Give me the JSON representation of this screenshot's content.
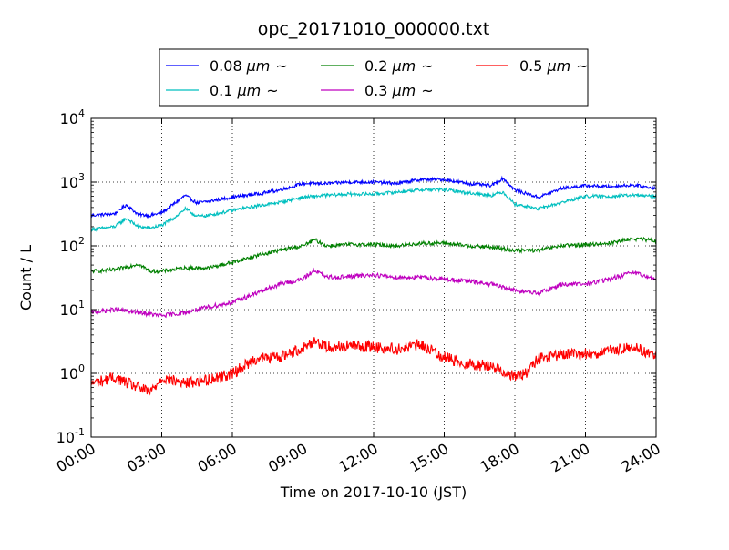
{
  "chart_data": {
    "type": "line",
    "title": "opc_20171010_000000.txt",
    "xlabel": "Time on 2017-10-10 (JST)",
    "ylabel": "Count / L",
    "yscale": "log",
    "ylim": [
      0.1,
      10000
    ],
    "xlim": [
      "00:00",
      "24:00"
    ],
    "x_ticks": [
      "00:00",
      "03:00",
      "06:00",
      "09:00",
      "12:00",
      "15:00",
      "18:00",
      "21:00",
      "24:00"
    ],
    "y_ticks": [
      {
        "base": "10",
        "exp": "-1"
      },
      {
        "base": "10",
        "exp": "0"
      },
      {
        "base": "10",
        "exp": "1"
      },
      {
        "base": "10",
        "exp": "2"
      },
      {
        "base": "10",
        "exp": "3"
      },
      {
        "base": "10",
        "exp": "4"
      }
    ],
    "grid": true,
    "legend": {
      "placement": "top",
      "columns": 3
    },
    "series": [
      {
        "name_value": "0.08",
        "name_unit": "μm",
        "name_suffix": "~",
        "color": "#0000ff",
        "x": [
          "00:00",
          "01:00",
          "01:30",
          "02:00",
          "02:30",
          "03:00",
          "03:30",
          "04:00",
          "04:30",
          "05:00",
          "06:00",
          "07:00",
          "08:00",
          "09:00",
          "10:00",
          "11:00",
          "12:00",
          "13:00",
          "14:00",
          "15:00",
          "16:00",
          "17:00",
          "17:30",
          "18:00",
          "19:00",
          "20:00",
          "21:00",
          "22:00",
          "23:00",
          "24:00"
        ],
        "values": [
          300,
          320,
          440,
          310,
          300,
          330,
          450,
          620,
          470,
          500,
          580,
          650,
          750,
          950,
          950,
          1000,
          1000,
          950,
          1100,
          1100,
          950,
          880,
          1150,
          750,
          580,
          800,
          880,
          850,
          900,
          800
        ]
      },
      {
        "name_value": "0.1",
        "name_unit": "μm",
        "name_suffix": "~",
        "color": "#00bfbf",
        "x": [
          "00:00",
          "01:00",
          "01:30",
          "02:00",
          "02:30",
          "03:00",
          "03:30",
          "04:00",
          "04:30",
          "05:00",
          "06:00",
          "07:00",
          "08:00",
          "09:00",
          "10:00",
          "11:00",
          "12:00",
          "13:00",
          "14:00",
          "15:00",
          "16:00",
          "17:00",
          "17:30",
          "18:00",
          "19:00",
          "20:00",
          "21:00",
          "22:00",
          "23:00",
          "24:00"
        ],
        "values": [
          180,
          200,
          270,
          200,
          190,
          210,
          270,
          380,
          290,
          300,
          360,
          420,
          480,
          580,
          620,
          650,
          650,
          700,
          760,
          760,
          680,
          620,
          700,
          450,
          380,
          480,
          600,
          600,
          620,
          600
        ]
      },
      {
        "name_value": "0.2",
        "name_unit": "μm",
        "name_suffix": "~",
        "color": "#008000",
        "x": [
          "00:00",
          "01:00",
          "02:00",
          "02:30",
          "03:00",
          "04:00",
          "05:00",
          "06:00",
          "07:00",
          "08:00",
          "09:00",
          "09:30",
          "10:00",
          "11:00",
          "12:00",
          "13:00",
          "14:00",
          "15:00",
          "16:00",
          "17:00",
          "18:00",
          "19:00",
          "20:00",
          "21:00",
          "22:00",
          "23:00",
          "24:00"
        ],
        "values": [
          40,
          42,
          52,
          40,
          40,
          45,
          45,
          55,
          70,
          85,
          100,
          125,
          100,
          105,
          105,
          100,
          110,
          110,
          100,
          95,
          85,
          85,
          100,
          105,
          110,
          130,
          120
        ]
      },
      {
        "name_value": "0.3",
        "name_unit": "μm",
        "name_suffix": "~",
        "color": "#bf00bf",
        "x": [
          "00:00",
          "01:00",
          "02:00",
          "03:00",
          "04:00",
          "05:00",
          "06:00",
          "07:00",
          "08:00",
          "09:00",
          "09:30",
          "10:00",
          "11:00",
          "12:00",
          "13:00",
          "14:00",
          "15:00",
          "16:00",
          "17:00",
          "18:00",
          "19:00",
          "20:00",
          "21:00",
          "22:00",
          "23:00",
          "24:00"
        ],
        "values": [
          9,
          10,
          9,
          8,
          9,
          11,
          13,
          18,
          25,
          30,
          42,
          32,
          33,
          35,
          32,
          32,
          30,
          28,
          25,
          20,
          18,
          25,
          25,
          30,
          38,
          30
        ]
      },
      {
        "name_value": "0.5",
        "name_unit": "μm",
        "name_suffix": "~",
        "color": "#ff0000",
        "x": [
          "00:00",
          "01:00",
          "02:00",
          "02:30",
          "03:00",
          "04:00",
          "05:00",
          "06:00",
          "07:00",
          "08:00",
          "09:00",
          "09:30",
          "10:00",
          "11:00",
          "12:00",
          "13:00",
          "14:00",
          "15:00",
          "16:00",
          "17:00",
          "18:00",
          "18:30",
          "19:00",
          "20:00",
          "21:00",
          "22:00",
          "23:00",
          "24:00"
        ],
        "values": [
          0.7,
          0.85,
          0.6,
          0.5,
          0.85,
          0.7,
          0.8,
          1.0,
          1.7,
          1.8,
          2.5,
          3.3,
          2.6,
          2.7,
          2.6,
          2.4,
          2.8,
          1.8,
          1.4,
          1.3,
          0.9,
          1.0,
          1.7,
          2.0,
          2.0,
          2.2,
          2.6,
          1.9
        ]
      }
    ]
  }
}
